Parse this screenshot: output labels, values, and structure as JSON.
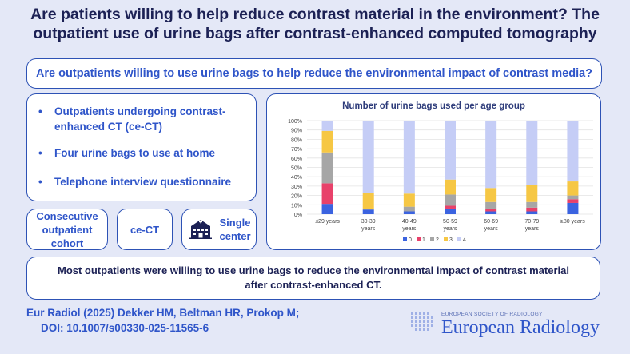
{
  "title": "Are patients willing to help reduce contrast material in the environment? The outpatient use of urine bags after contrast-enhanced computed tomography",
  "question": "Are outpatients willing to use urine bags to help reduce the environmental impact of contrast media?",
  "bullets": [
    "Outpatients undergoing contrast-enhanced CT (ce-CT)",
    "Four urine bags to use at home",
    "Telephone interview questionnaire"
  ],
  "chips": {
    "cohort": "Consecutive outpatient cohort",
    "modality": "ce-CT",
    "center": "Single center"
  },
  "icons": {
    "center": "hospital-building-icon",
    "logo": "dot-grid-logo-icon"
  },
  "conclusion": "Most outpatients were willing to use urine bags to reduce the environmental impact of contrast material after contrast-enhanced CT.",
  "citation": {
    "line1": "Eur Radiol (2025) Dekker HM, Beltman HR, Prokop M;",
    "line2": "DOI: 10.1007/s00330-025-11565-6"
  },
  "journal": {
    "society": "EUROPEAN SOCIETY OF RADIOLOGY",
    "name": "European Radiology"
  },
  "colors": {
    "background": "#e4e8f7",
    "border": "#2d52b5",
    "accent": "#2f55c9",
    "dark": "#1c2155"
  },
  "chart_data": {
    "type": "bar",
    "stacked": true,
    "title": "Number of urine bags used per age group",
    "categories": [
      "≤29 years",
      "30-39 years",
      "40-49 years",
      "50-59 years",
      "60-69 years",
      "70-79 years",
      "≥80 years"
    ],
    "ylim": [
      0,
      100
    ],
    "yticks": [
      "0%",
      "10%",
      "20%",
      "30%",
      "40%",
      "50%",
      "60%",
      "70%",
      "80%",
      "90%",
      "100%"
    ],
    "legend_position": "bottom",
    "series": [
      {
        "name": "0",
        "color": "#3b63e0",
        "values": [
          11,
          5,
          3,
          6,
          3,
          3,
          12
        ]
      },
      {
        "name": "1",
        "color": "#e8416a",
        "values": [
          22,
          0,
          0,
          3,
          3,
          4,
          4
        ]
      },
      {
        "name": "2",
        "color": "#a6a6a6",
        "values": [
          33,
          0,
          5,
          12,
          7,
          6,
          4
        ]
      },
      {
        "name": "3",
        "color": "#f6c744",
        "values": [
          23,
          18,
          14,
          16,
          15,
          18,
          15
        ]
      },
      {
        "name": "4",
        "color": "#c5cdf6",
        "values": [
          11,
          77,
          78,
          63,
          72,
          69,
          65
        ]
      }
    ]
  }
}
